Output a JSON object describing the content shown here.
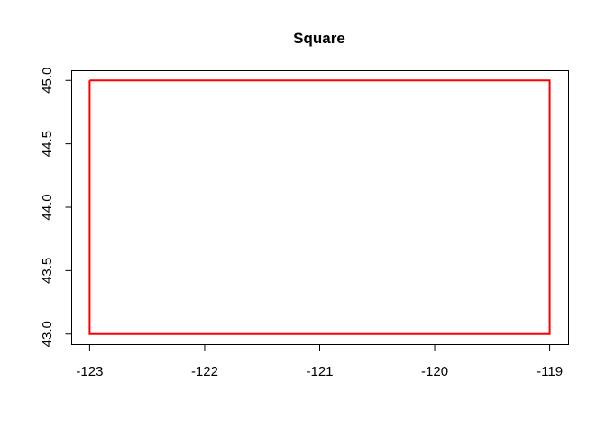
{
  "chart_data": {
    "type": "line",
    "title": "Square",
    "xlabel": "",
    "ylabel": "",
    "xlim": [
      -123.16,
      -118.84
    ],
    "ylim": [
      42.92,
      45.08
    ],
    "x_ticks": [
      -123,
      -122,
      -121,
      -120,
      -119
    ],
    "x_tick_labels": [
      "-123",
      "-122",
      "-121",
      "-120",
      "-119"
    ],
    "y_ticks": [
      43.0,
      43.5,
      44.0,
      44.5,
      45.0
    ],
    "y_tick_labels": [
      "43.0",
      "43.5",
      "44.0",
      "44.5",
      "45.0"
    ],
    "grid": false,
    "series": [
      {
        "color": "#ff0000",
        "x": [
          -123,
          -119,
          -119,
          -123,
          -123
        ],
        "y": [
          45.0,
          45.0,
          43.0,
          43.0,
          45.0
        ]
      }
    ]
  }
}
